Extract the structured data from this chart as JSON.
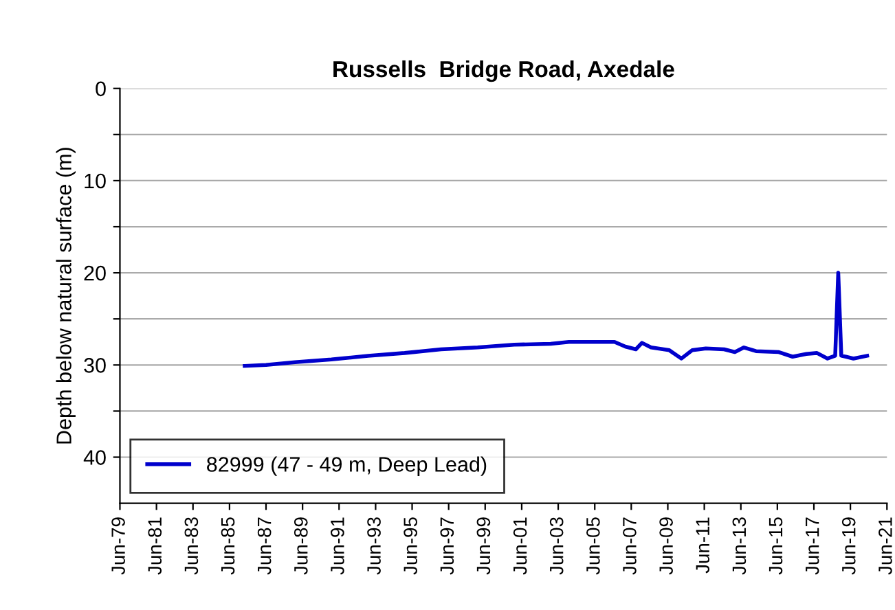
{
  "chart_data": {
    "type": "line",
    "title": "Russells  Bridge Road, Axedale",
    "ylabel": "Depth below natural surface (m)",
    "x": [
      "1986-04",
      "1987-06",
      "1989-01",
      "1991-01",
      "1993-01",
      "1995-01",
      "1997-01",
      "1999-01",
      "2001-01",
      "2003-01",
      "2004-01",
      "2006-07",
      "2007-02",
      "2007-09",
      "2008-01",
      "2008-07",
      "2009-07",
      "2010-03",
      "2010-10",
      "2011-07",
      "2012-07",
      "2013-02",
      "2013-08",
      "2014-04",
      "2015-07",
      "2016-04",
      "2017-01",
      "2017-08",
      "2018-03",
      "2018-08",
      "2018-10",
      "2018-12",
      "2019-03",
      "2019-08",
      "2020-05"
    ],
    "series": [
      {
        "name": "82999 (47 - 49 m, Deep Lead)",
        "color": "#0000cc",
        "values": [
          30.1,
          30.0,
          29.7,
          29.4,
          29.0,
          28.7,
          28.3,
          28.1,
          27.8,
          27.7,
          27.5,
          27.5,
          28.0,
          28.3,
          27.6,
          28.1,
          28.4,
          29.3,
          28.4,
          28.2,
          28.3,
          28.6,
          28.1,
          28.5,
          28.6,
          29.1,
          28.8,
          28.7,
          29.3,
          29.0,
          20.0,
          29.0,
          29.1,
          29.3,
          29.0
        ]
      }
    ],
    "xlim": [
      "1979-06",
      "2021-06"
    ],
    "xticks": [
      {
        "value": "1979-06",
        "label": "Jun-79"
      },
      {
        "value": "1981-06",
        "label": "Jun-81"
      },
      {
        "value": "1983-06",
        "label": "Jun-83"
      },
      {
        "value": "1985-06",
        "label": "Jun-85"
      },
      {
        "value": "1987-06",
        "label": "Jun-87"
      },
      {
        "value": "1989-06",
        "label": "Jun-89"
      },
      {
        "value": "1991-06",
        "label": "Jun-91"
      },
      {
        "value": "1993-06",
        "label": "Jun-93"
      },
      {
        "value": "1995-06",
        "label": "Jun-95"
      },
      {
        "value": "1997-06",
        "label": "Jun-97"
      },
      {
        "value": "1999-06",
        "label": "Jun-99"
      },
      {
        "value": "2001-06",
        "label": "Jun-01"
      },
      {
        "value": "2003-06",
        "label": "Jun-03"
      },
      {
        "value": "2005-06",
        "label": "Jun-05"
      },
      {
        "value": "2007-06",
        "label": "Jun-07"
      },
      {
        "value": "2009-06",
        "label": "Jun-09"
      },
      {
        "value": "2011-06",
        "label": "Jun-11"
      },
      {
        "value": "2013-06",
        "label": "Jun-13"
      },
      {
        "value": "2015-06",
        "label": "Jun-15"
      },
      {
        "value": "2017-06",
        "label": "Jun-17"
      },
      {
        "value": "2019-06",
        "label": "Jun-19"
      },
      {
        "value": "2021-06",
        "label": "Jun-21"
      }
    ],
    "ylim": [
      45,
      0
    ],
    "yticks": [
      0,
      {
        "value": 5,
        "label": null
      },
      10,
      {
        "value": 15,
        "label": null
      },
      20,
      {
        "value": 25,
        "label": null
      },
      30,
      {
        "value": 35,
        "label": null
      },
      40
    ],
    "grid": "y",
    "legend": "bottom left",
    "marker": "none",
    "line_style": "solid"
  }
}
